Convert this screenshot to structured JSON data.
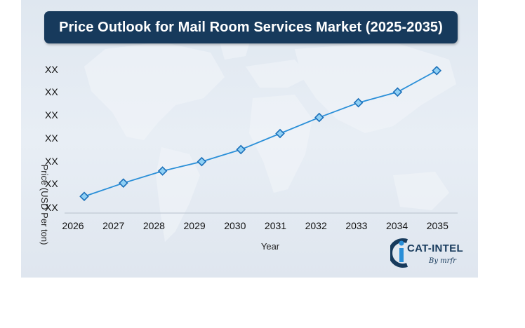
{
  "colors": {
    "title_bg": "#173a5c",
    "line": "#2a8fd8",
    "marker_fill": "#8fd0f5",
    "marker_stroke": "#1b6fb8"
  },
  "chart_data": {
    "type": "line",
    "title": "Price Outlook for Mail Room Services Market (2025-2035)",
    "xlabel": "Year",
    "ylabel": "Price (USD Per ton)",
    "categories": [
      "2026",
      "2027",
      "2028",
      "2029",
      "2030",
      "2031",
      "2032",
      "2033",
      "2034",
      "2035"
    ],
    "y_tick_labels": [
      "XX",
      "XX",
      "XX",
      "XX",
      "XX",
      "XX",
      "XX"
    ],
    "ylim": [
      0,
      100
    ],
    "series": [
      {
        "name": "Price",
        "values": [
          3,
          13,
          22,
          29,
          38,
          50,
          62,
          73,
          81,
          97
        ]
      }
    ]
  },
  "logo": {
    "main": "CAT-INTEL",
    "sub": "By mrfr"
  }
}
